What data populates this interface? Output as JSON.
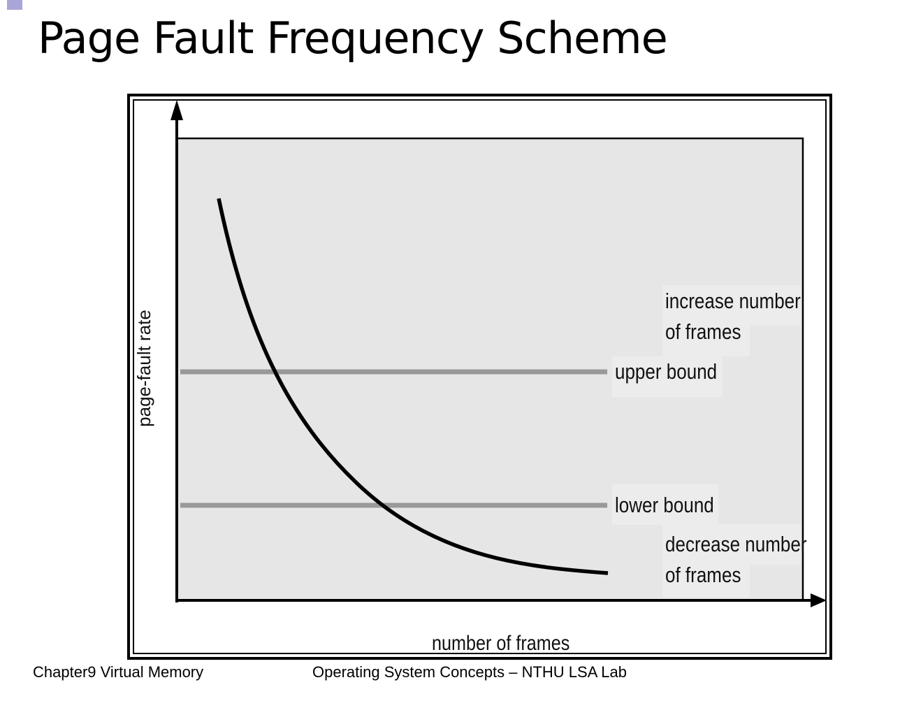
{
  "slide": {
    "title": "Page Fault Frequency Scheme"
  },
  "diagram": {
    "y_axis_label": "page-fault rate",
    "x_axis_label": "number of frames",
    "upper_bound_label": "upper bound",
    "lower_bound_label": "lower bound",
    "increase_label_line1": "increase number",
    "increase_label_line2": "of frames",
    "decrease_label_line1": "decrease number",
    "decrease_label_line2": "of frames",
    "colors": {
      "plot_background": "#e6e6e6",
      "bound_line": "#999999",
      "label_background": "#ececec",
      "curve": "#000000"
    }
  },
  "footer": {
    "left": "Chapter9 Virtual Memory",
    "center": "Operating System Concepts – NTHU LSA Lab"
  }
}
